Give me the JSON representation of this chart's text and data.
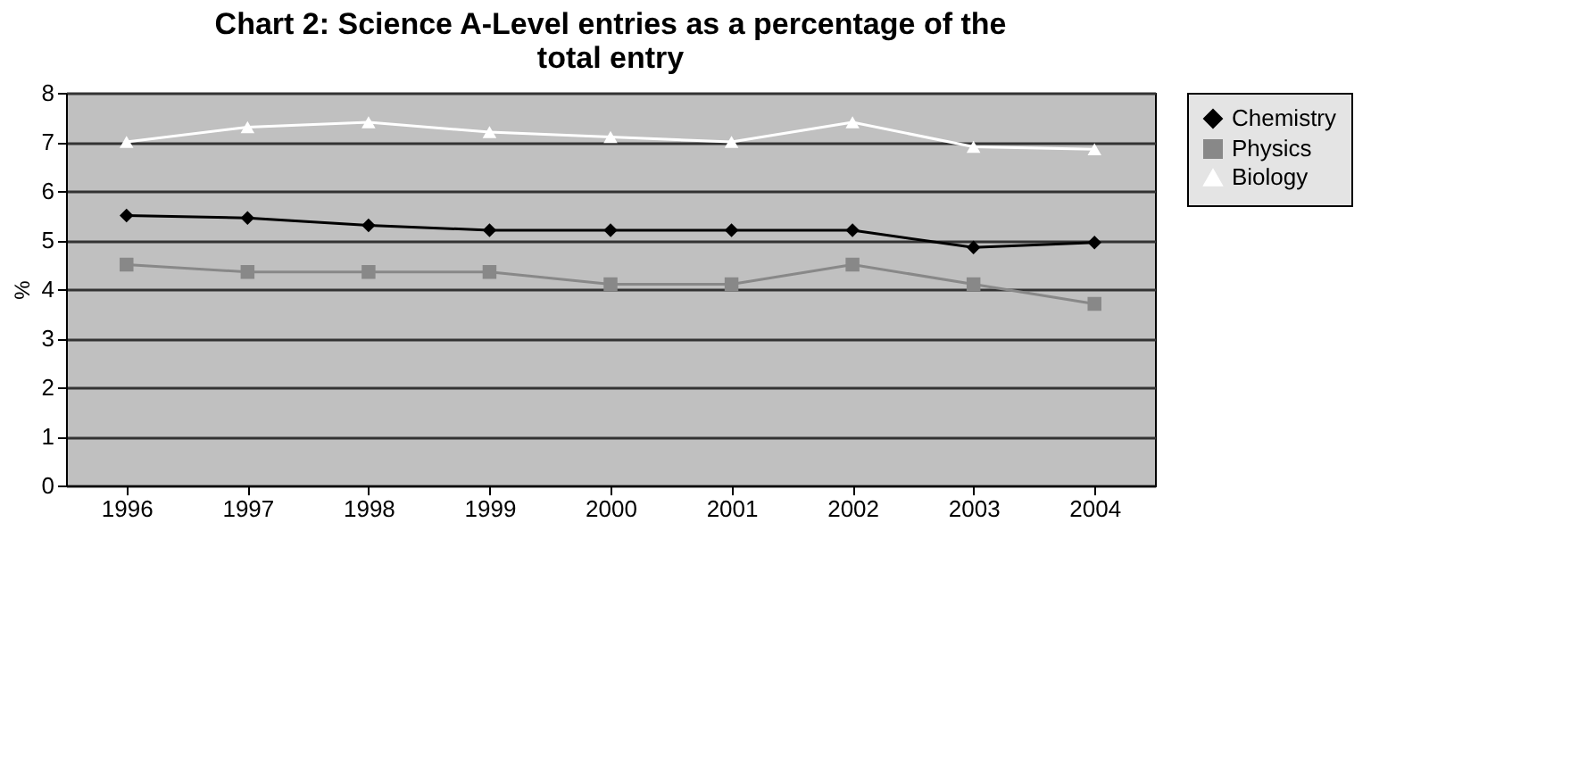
{
  "chart_data": {
    "type": "line",
    "title": "Chart 2: Science A-Level entries as a percentage of the total entry",
    "ylabel": "%",
    "categories": [
      "1996",
      "1997",
      "1998",
      "1999",
      "2000",
      "2001",
      "2002",
      "2003",
      "2004"
    ],
    "series": [
      {
        "name": "Chemistry",
        "color": "#000000",
        "marker": "diamond",
        "values": [
          5.5,
          5.45,
          5.3,
          5.2,
          5.2,
          5.2,
          5.2,
          4.85,
          4.95
        ]
      },
      {
        "name": "Physics",
        "color": "#888888",
        "marker": "square",
        "values": [
          4.5,
          4.35,
          4.35,
          4.35,
          4.1,
          4.1,
          4.5,
          4.1,
          3.7
        ]
      },
      {
        "name": "Biology",
        "color": "#ffffff",
        "marker": "triangle",
        "values": [
          7.0,
          7.3,
          7.4,
          7.2,
          7.1,
          7.0,
          7.4,
          6.9,
          6.85
        ]
      }
    ],
    "ylim": [
      0,
      8
    ],
    "yticks": [
      0,
      1,
      2,
      3,
      4,
      5,
      6,
      7,
      8
    ],
    "grid": "y",
    "legend": "right",
    "line_style": "solid"
  }
}
